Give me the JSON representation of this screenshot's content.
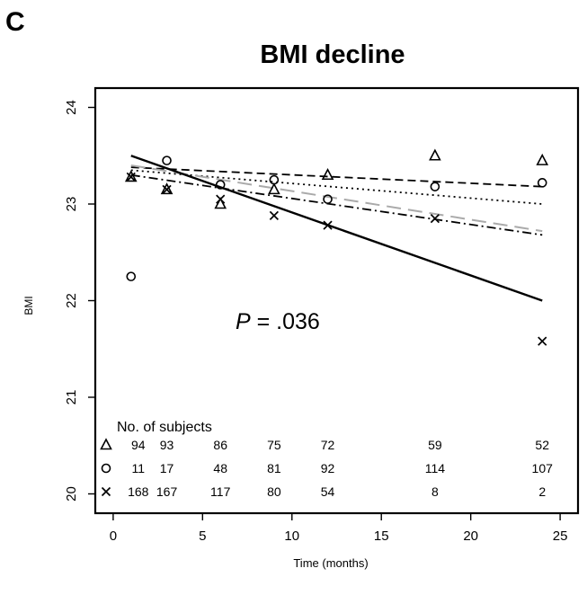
{
  "panel_label": "C",
  "chart_data": {
    "type": "scatter",
    "title": "BMI decline",
    "xlabel": "Time (months)",
    "ylabel": "BMI",
    "xlim": [
      -1,
      26
    ],
    "ylim": [
      19.8,
      24.2
    ],
    "x_ticks": [
      0,
      5,
      10,
      15,
      20,
      25
    ],
    "y_ticks": [
      20,
      21,
      22,
      23,
      24
    ],
    "annotation": {
      "prefix": "P",
      "text": " = .036"
    },
    "series": [
      {
        "marker": "triangle",
        "points": [
          [
            1,
            23.28
          ],
          [
            3,
            23.15
          ],
          [
            6,
            23.0
          ],
          [
            9,
            23.15
          ],
          [
            12,
            23.3
          ],
          [
            18,
            23.5
          ],
          [
            24,
            23.45
          ]
        ],
        "counts": [
          "94",
          "93",
          "86",
          "75",
          "72",
          "59",
          "52"
        ],
        "fit": {
          "from": [
            1,
            23.38
          ],
          "to": [
            24,
            23.18
          ],
          "style": "dashed"
        }
      },
      {
        "marker": "circle",
        "points": [
          [
            1,
            22.25
          ],
          [
            3,
            23.45
          ],
          [
            6,
            23.2
          ],
          [
            9,
            23.25
          ],
          [
            12,
            23.05
          ],
          [
            18,
            23.18
          ],
          [
            24,
            23.22
          ]
        ],
        "counts": [
          "11",
          "17",
          "48",
          "81",
          "92",
          "114",
          "107"
        ],
        "fit": {
          "from": [
            1,
            23.35
          ],
          "to": [
            24,
            23.0
          ],
          "style": "dotted"
        }
      },
      {
        "marker": "x",
        "points": [
          [
            1,
            23.28
          ],
          [
            3,
            23.15
          ],
          [
            6,
            23.05
          ],
          [
            9,
            22.88
          ],
          [
            12,
            22.78
          ],
          [
            18,
            22.85
          ],
          [
            24,
            21.58
          ]
        ],
        "counts": [
          "168",
          "167",
          "117",
          "80",
          "54",
          "8",
          "2"
        ],
        "fit": {
          "from": [
            1,
            23.3
          ],
          "to": [
            24,
            22.68
          ],
          "style": "dashdot"
        }
      }
    ],
    "overall_fits": [
      {
        "from": [
          1,
          23.4
        ],
        "to": [
          24,
          22.72
        ],
        "style": "longdash",
        "color": "#aaaaaa"
      },
      {
        "from": [
          1,
          23.5
        ],
        "to": [
          24,
          22.0
        ],
        "style": "solid",
        "color": "#000000"
      }
    ],
    "subjects_table": {
      "title": "No. of subjects",
      "times": [
        1,
        3,
        6,
        9,
        12,
        18,
        24
      ]
    }
  }
}
